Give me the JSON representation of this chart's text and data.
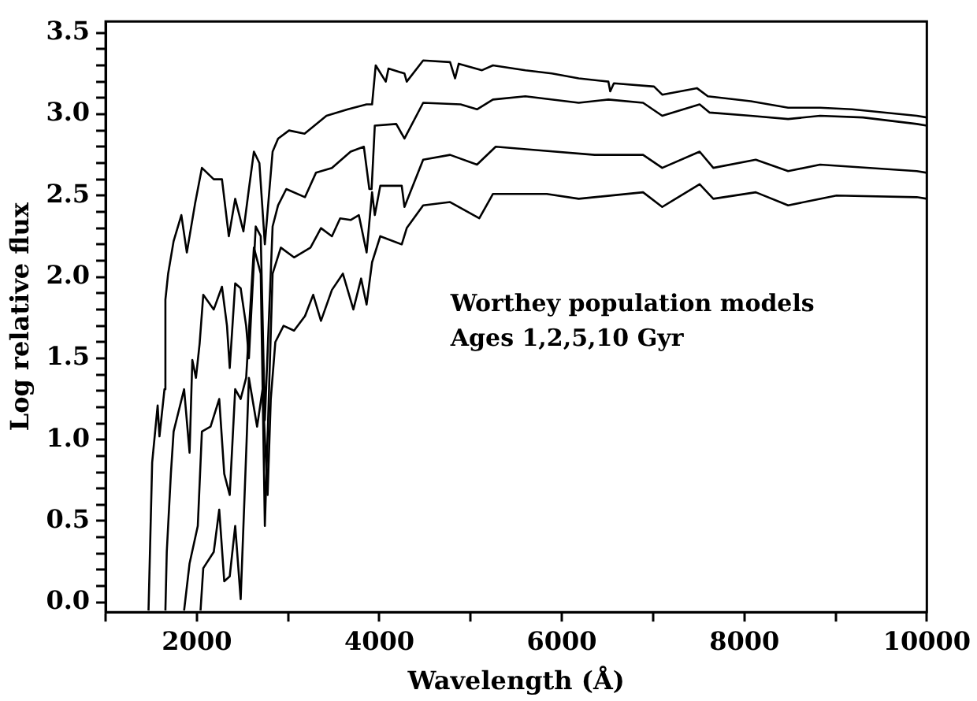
{
  "chart_data": {
    "type": "line",
    "xlabel": "Wavelength (Å)",
    "ylabel": "Log relative flux",
    "annotations": [
      "Worthey population models",
      "Ages 1,2,5,10 Gyr"
    ],
    "xlim": [
      1000,
      10000
    ],
    "ylim": [
      -0.06,
      3.57
    ],
    "xticks": [
      {
        "value": 1000,
        "label": null
      },
      2000,
      {
        "value": 3000,
        "label": null
      },
      4000,
      {
        "value": 5000,
        "label": null
      },
      6000,
      {
        "value": 7000,
        "label": null
      },
      8000,
      {
        "value": 9000,
        "label": null
      },
      10000
    ],
    "yticks": [
      {
        "value": 0,
        "label": "0.0"
      },
      {
        "value": 0.1,
        "label": null
      },
      {
        "value": 0.2,
        "label": null
      },
      {
        "value": 0.3,
        "label": null
      },
      {
        "value": 0.4,
        "label": null
      },
      {
        "value": 0.5,
        "label": "0.5"
      },
      {
        "value": 0.6,
        "label": null
      },
      {
        "value": 0.7,
        "label": null
      },
      {
        "value": 0.8,
        "label": null
      },
      {
        "value": 0.9,
        "label": null
      },
      {
        "value": 1,
        "label": "1.0"
      },
      {
        "value": 1.1,
        "label": null
      },
      {
        "value": 1.2,
        "label": null
      },
      {
        "value": 1.3,
        "label": null
      },
      {
        "value": 1.4,
        "label": null
      },
      {
        "value": 1.5,
        "label": "1.5"
      },
      {
        "value": 1.6,
        "label": null
      },
      {
        "value": 1.7,
        "label": null
      },
      {
        "value": 1.8,
        "label": null
      },
      {
        "value": 1.9,
        "label": null
      },
      {
        "value": 2,
        "label": "2.0"
      },
      {
        "value": 2.1,
        "label": null
      },
      {
        "value": 2.2,
        "label": null
      },
      {
        "value": 2.3,
        "label": null
      },
      {
        "value": 2.4,
        "label": null
      },
      {
        "value": 2.5,
        "label": "2.5"
      },
      {
        "value": 2.6,
        "label": null
      },
      {
        "value": 2.7,
        "label": null
      },
      {
        "value": 2.8,
        "label": null
      },
      {
        "value": 2.9,
        "label": null
      },
      {
        "value": 3,
        "label": "3.0"
      },
      {
        "value": 3.1,
        "label": null
      },
      {
        "value": 3.2,
        "label": null
      },
      {
        "value": 3.3,
        "label": null
      },
      {
        "value": 3.4,
        "label": null
      },
      {
        "value": 3.5,
        "label": "3.5"
      }
    ],
    "grid": false,
    "legend": false,
    "marker": "none",
    "line_style": "solid",
    "series": [
      {
        "color": "#000000",
        "x": [
          1470,
          1510,
          1570,
          1590,
          1645,
          1655,
          1685,
          1745,
          1830,
          1890,
          1980,
          2055,
          2185,
          2275,
          2350,
          2420,
          2510,
          2570,
          2625,
          2685,
          2745,
          2830,
          2890,
          3010,
          3180,
          3420,
          3655,
          3860,
          3920,
          3960,
          4070,
          4100,
          4275,
          4300,
          4480,
          4775,
          4830,
          4870,
          5125,
          5245,
          5600,
          5890,
          6185,
          6510,
          6530,
          6570,
          7010,
          7100,
          7480,
          7600,
          8070,
          8480,
          8830,
          9180,
          9890,
          10000
        ],
        "values": [
          -0.05,
          0.86,
          1.21,
          1.02,
          1.31,
          1.86,
          2.02,
          2.22,
          2.38,
          2.15,
          2.45,
          2.67,
          2.6,
          2.6,
          2.25,
          2.48,
          2.28,
          2.54,
          2.77,
          2.7,
          2.2,
          2.77,
          2.85,
          2.9,
          2.88,
          2.99,
          3.03,
          3.06,
          3.06,
          3.3,
          3.2,
          3.28,
          3.25,
          3.2,
          3.33,
          3.32,
          3.22,
          3.31,
          3.27,
          3.3,
          3.27,
          3.25,
          3.22,
          3.2,
          3.14,
          3.19,
          3.17,
          3.12,
          3.16,
          3.11,
          3.08,
          3.04,
          3.04,
          3.03,
          2.99,
          2.98
        ]
      },
      {
        "color": "#000000",
        "x": [
          1655,
          1670,
          1715,
          1745,
          1860,
          1920,
          1950,
          1990,
          2030,
          2070,
          2185,
          2275,
          2330,
          2360,
          2420,
          2480,
          2540,
          2570,
          2645,
          2700,
          2745,
          2830,
          2890,
          2980,
          3185,
          3305,
          3480,
          3685,
          3830,
          3890,
          3915,
          3950,
          4185,
          4275,
          4480,
          4890,
          5070,
          5245,
          5600,
          6185,
          6510,
          6890,
          7100,
          7510,
          7620,
          8070,
          8480,
          8830,
          9300,
          9890,
          10000
        ],
        "values": [
          -0.05,
          0.31,
          0.79,
          1.05,
          1.31,
          0.92,
          1.49,
          1.38,
          1.59,
          1.89,
          1.8,
          1.94,
          1.7,
          1.44,
          1.96,
          1.93,
          1.7,
          1.5,
          2.31,
          2.25,
          1.12,
          2.31,
          2.44,
          2.54,
          2.49,
          2.64,
          2.67,
          2.77,
          2.8,
          2.54,
          2.54,
          2.93,
          2.94,
          2.85,
          3.07,
          3.06,
          3.03,
          3.09,
          3.11,
          3.07,
          3.09,
          3.07,
          2.99,
          3.06,
          3.01,
          2.99,
          2.97,
          2.99,
          2.98,
          2.94,
          2.93
        ]
      },
      {
        "color": "#000000",
        "x": [
          1860,
          1920,
          2010,
          2055,
          2150,
          2245,
          2300,
          2360,
          2420,
          2480,
          2540,
          2625,
          2700,
          2745,
          2830,
          2920,
          3065,
          3245,
          3360,
          3480,
          3570,
          3685,
          3775,
          3860,
          3920,
          3950,
          4010,
          4245,
          4275,
          4480,
          4775,
          5070,
          5275,
          5715,
          6360,
          6890,
          7100,
          7510,
          7660,
          8125,
          8480,
          8830,
          9890,
          10000
        ],
        "values": [
          -0.05,
          0.24,
          0.47,
          1.05,
          1.08,
          1.25,
          0.79,
          0.66,
          1.31,
          1.25,
          1.38,
          2.18,
          2.02,
          0.47,
          2.02,
          2.18,
          2.12,
          2.18,
          2.3,
          2.25,
          2.36,
          2.35,
          2.38,
          2.15,
          2.52,
          2.38,
          2.56,
          2.56,
          2.43,
          2.72,
          2.75,
          2.69,
          2.8,
          2.78,
          2.75,
          2.75,
          2.67,
          2.77,
          2.67,
          2.72,
          2.65,
          2.69,
          2.65,
          2.64
        ]
      },
      {
        "color": "#000000",
        "x": [
          2040,
          2070,
          2185,
          2245,
          2300,
          2360,
          2420,
          2480,
          2545,
          2570,
          2660,
          2720,
          2775,
          2810,
          2860,
          2950,
          3065,
          3185,
          3275,
          3360,
          3480,
          3600,
          3715,
          3800,
          3860,
          3920,
          4010,
          4245,
          4300,
          4480,
          4775,
          5095,
          5245,
          5835,
          6185,
          6890,
          7100,
          7510,
          7660,
          8125,
          8480,
          9010,
          9890,
          10000
        ],
        "values": [
          -0.05,
          0.21,
          0.31,
          0.57,
          0.13,
          0.16,
          0.47,
          0.02,
          0.99,
          1.38,
          1.08,
          1.31,
          0.66,
          1.25,
          1.6,
          1.7,
          1.67,
          1.76,
          1.89,
          1.73,
          1.92,
          2.02,
          1.8,
          1.99,
          1.83,
          2.09,
          2.25,
          2.2,
          2.3,
          2.44,
          2.46,
          2.36,
          2.51,
          2.51,
          2.48,
          2.52,
          2.43,
          2.57,
          2.48,
          2.52,
          2.44,
          2.5,
          2.49,
          2.48
        ]
      }
    ]
  }
}
